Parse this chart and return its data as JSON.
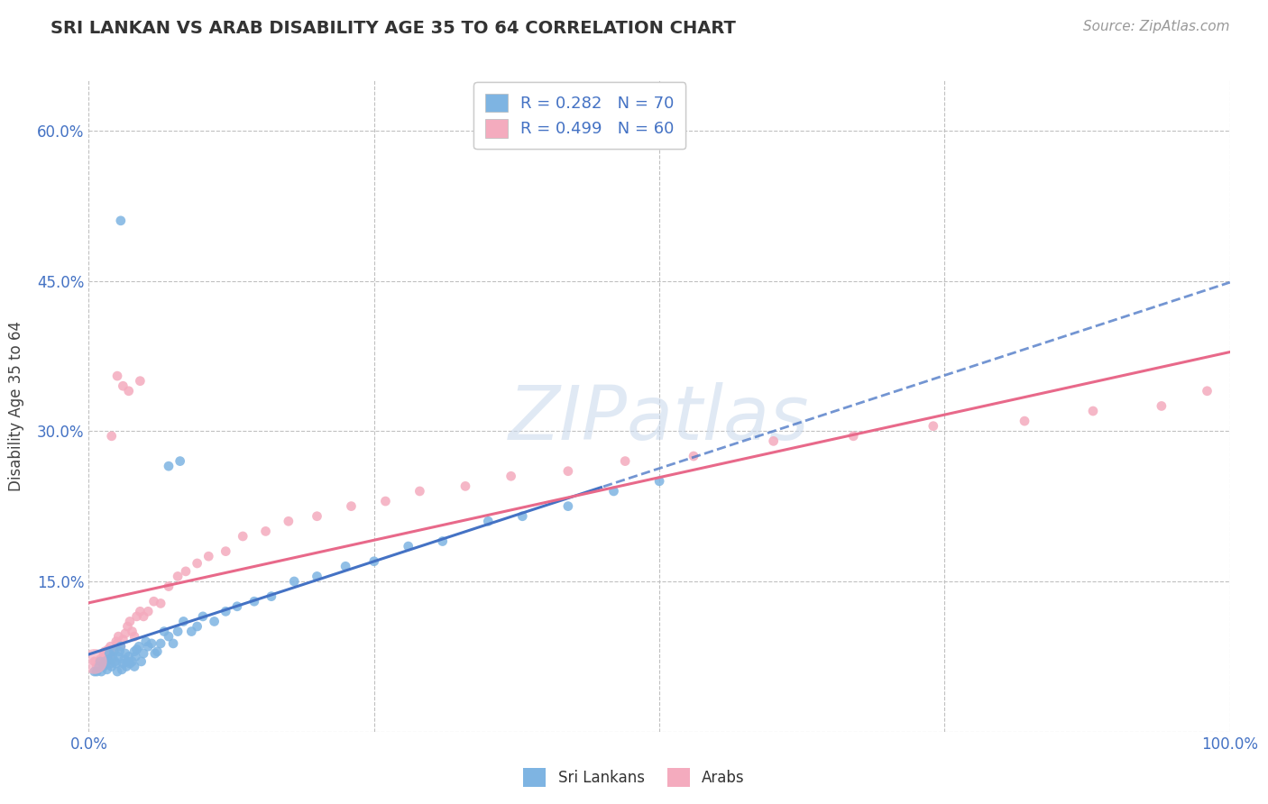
{
  "title": "SRI LANKAN VS ARAB DISABILITY AGE 35 TO 64 CORRELATION CHART",
  "source": "Source: ZipAtlas.com",
  "ylabel": "Disability Age 35 to 64",
  "xlim": [
    0.0,
    1.0
  ],
  "ylim": [
    0.0,
    0.65
  ],
  "x_ticks": [
    0.0,
    0.25,
    0.5,
    0.75,
    1.0
  ],
  "x_tick_labels": [
    "0.0%",
    "",
    "",
    "",
    "100.0%"
  ],
  "y_ticks": [
    0.0,
    0.15,
    0.3,
    0.45,
    0.6
  ],
  "y_tick_labels": [
    "",
    "15.0%",
    "30.0%",
    "45.0%",
    "60.0%"
  ],
  "R_sri": "0.282",
  "N_sri": "70",
  "R_arab": "0.499",
  "N_arab": "60",
  "sri_color": "#7EB4E2",
  "arab_color": "#F4ABBE",
  "sri_line_color": "#4472C4",
  "arab_line_color": "#E8698A",
  "bg_color": "#FFFFFF",
  "grid_color": "#C0C0C0",
  "sri_label": "Sri Lankans",
  "arab_label": "Arabs",
  "watermark": "ZIPatlas",
  "sri_x": [
    0.005,
    0.007,
    0.009,
    0.01,
    0.011,
    0.013,
    0.014,
    0.015,
    0.016,
    0.017,
    0.018,
    0.019,
    0.02,
    0.021,
    0.022,
    0.023,
    0.024,
    0.025,
    0.026,
    0.027,
    0.028,
    0.029,
    0.03,
    0.031,
    0.032,
    0.033,
    0.034,
    0.035,
    0.036,
    0.038,
    0.04,
    0.041,
    0.042,
    0.044,
    0.046,
    0.048,
    0.05,
    0.052,
    0.055,
    0.058,
    0.06,
    0.063,
    0.066,
    0.07,
    0.074,
    0.078,
    0.083,
    0.09,
    0.095,
    0.1,
    0.11,
    0.12,
    0.13,
    0.145,
    0.16,
    0.18,
    0.2,
    0.225,
    0.25,
    0.28,
    0.31,
    0.35,
    0.38,
    0.42,
    0.46,
    0.5,
    0.07,
    0.08,
    0.028,
    0.04
  ],
  "sri_y": [
    0.06,
    0.06,
    0.065,
    0.07,
    0.06,
    0.065,
    0.07,
    0.068,
    0.062,
    0.072,
    0.078,
    0.068,
    0.065,
    0.075,
    0.08,
    0.07,
    0.068,
    0.06,
    0.075,
    0.08,
    0.085,
    0.062,
    0.068,
    0.072,
    0.078,
    0.065,
    0.07,
    0.075,
    0.068,
    0.07,
    0.08,
    0.075,
    0.082,
    0.085,
    0.07,
    0.078,
    0.09,
    0.085,
    0.088,
    0.078,
    0.08,
    0.088,
    0.1,
    0.095,
    0.088,
    0.1,
    0.11,
    0.1,
    0.105,
    0.115,
    0.11,
    0.12,
    0.125,
    0.13,
    0.135,
    0.15,
    0.155,
    0.165,
    0.17,
    0.185,
    0.19,
    0.21,
    0.215,
    0.225,
    0.24,
    0.25,
    0.265,
    0.27,
    0.51,
    0.065
  ],
  "arab_x": [
    0.005,
    0.007,
    0.009,
    0.01,
    0.012,
    0.013,
    0.014,
    0.015,
    0.016,
    0.017,
    0.018,
    0.019,
    0.02,
    0.022,
    0.024,
    0.025,
    0.026,
    0.028,
    0.03,
    0.032,
    0.034,
    0.036,
    0.038,
    0.04,
    0.042,
    0.045,
    0.048,
    0.052,
    0.057,
    0.063,
    0.07,
    0.078,
    0.085,
    0.095,
    0.105,
    0.12,
    0.135,
    0.155,
    0.175,
    0.2,
    0.23,
    0.26,
    0.29,
    0.33,
    0.37,
    0.42,
    0.47,
    0.53,
    0.6,
    0.67,
    0.74,
    0.82,
    0.88,
    0.94,
    0.98,
    0.02,
    0.025,
    0.03,
    0.035,
    0.045
  ],
  "arab_y": [
    0.07,
    0.065,
    0.068,
    0.072,
    0.065,
    0.078,
    0.08,
    0.068,
    0.075,
    0.082,
    0.078,
    0.085,
    0.072,
    0.08,
    0.09,
    0.088,
    0.095,
    0.085,
    0.092,
    0.098,
    0.105,
    0.11,
    0.1,
    0.095,
    0.115,
    0.12,
    0.115,
    0.12,
    0.13,
    0.128,
    0.145,
    0.155,
    0.16,
    0.168,
    0.175,
    0.18,
    0.195,
    0.2,
    0.21,
    0.215,
    0.225,
    0.23,
    0.24,
    0.245,
    0.255,
    0.26,
    0.27,
    0.275,
    0.29,
    0.295,
    0.305,
    0.31,
    0.32,
    0.325,
    0.34,
    0.295,
    0.355,
    0.345,
    0.34,
    0.35
  ],
  "arab_large_x": [
    0.005
  ],
  "arab_large_y": [
    0.07
  ],
  "large_dot_size": 400,
  "dot_size": 60,
  "sri_line_end_solid": 0.45,
  "title_fontsize": 14,
  "tick_fontsize": 12,
  "legend_fontsize": 13
}
